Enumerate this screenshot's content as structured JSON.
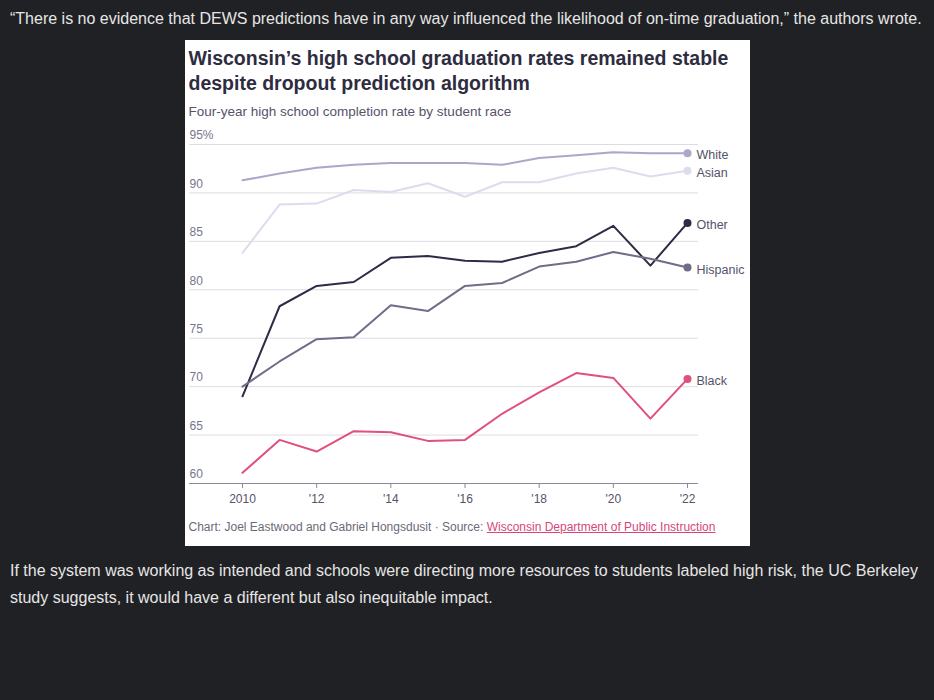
{
  "page": {
    "text_before": "“There is no evidence that DEWS predictions have in any way influenced the likelihood of on-time graduation,” the authors wrote.",
    "text_after": "If the system was working as intended and schools were directing more resources to students labeled high risk, the UC Berkeley study suggests, it would have a different but also inequitable impact."
  },
  "chart_data": {
    "type": "line",
    "title": "Wisconsin’s high school graduation rates remained stable despite dropout prediction algorithm",
    "subtitle": "Four-year high school completion rate by student race",
    "credit": "Chart: Joel Eastwood and Gabriel Hongsdusit · Source:",
    "source": "Wisconsin Department of Public Instruction",
    "x": [
      2010,
      2011,
      2012,
      2013,
      2014,
      2015,
      2016,
      2017,
      2018,
      2019,
      2020,
      2021,
      2022
    ],
    "series": [
      {
        "name": "White",
        "color": "#aaa7ca",
        "values": [
          91.3,
          92.0,
          92.6,
          92.9,
          93.1,
          93.1,
          93.1,
          92.9,
          93.6,
          93.9,
          94.2,
          94.1,
          94.1
        ]
      },
      {
        "name": "Asian",
        "color": "#dcdcef",
        "values": [
          83.8,
          88.8,
          88.9,
          90.3,
          90.1,
          91.0,
          89.6,
          91.1,
          91.1,
          92.0,
          92.6,
          91.7,
          92.3
        ]
      },
      {
        "name": "Other",
        "color": "#2d2b45",
        "values": [
          69.0,
          78.3,
          80.4,
          80.8,
          83.3,
          83.5,
          83.0,
          82.9,
          83.8,
          84.5,
          86.6,
          82.5,
          86.9
        ]
      },
      {
        "name": "Hispanic",
        "color": "#6f6d87",
        "values": [
          70.0,
          72.6,
          74.9,
          75.1,
          78.4,
          77.8,
          80.4,
          80.7,
          82.4,
          82.9,
          83.9,
          83.2,
          82.3
        ]
      },
      {
        "name": "Black",
        "color": "#e0507a",
        "values": [
          61.1,
          64.5,
          63.3,
          65.4,
          65.3,
          64.4,
          64.5,
          67.2,
          69.4,
          71.4,
          70.9,
          66.7,
          70.8
        ]
      }
    ],
    "xlim": [
      2010,
      2022
    ],
    "xticks": [
      2010,
      {
        "value": 2012,
        "label": "'12"
      },
      {
        "value": 2014,
        "label": "'14"
      },
      {
        "value": 2016,
        "label": "'16"
      },
      {
        "value": 2018,
        "label": "'18"
      },
      {
        "value": 2020,
        "label": "'20"
      },
      {
        "value": 2022,
        "label": "'22"
      }
    ],
    "ylim": [
      60,
      95
    ],
    "yticks": [
      60,
      65,
      70,
      75,
      80,
      85,
      90,
      {
        "value": 95,
        "label": "95%"
      }
    ],
    "grid": true,
    "marker": "end-dot"
  }
}
